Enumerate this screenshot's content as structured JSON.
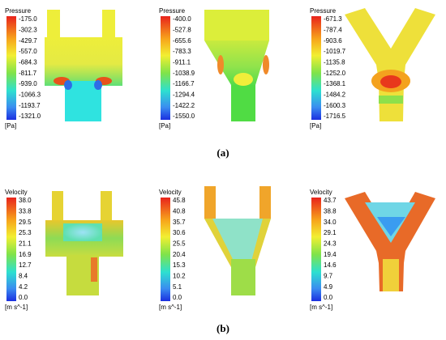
{
  "figure": {
    "panels": [
      {
        "quantity": "Pressure",
        "ticks": [
          "-175.0",
          "-302.3",
          "-429.7",
          "-557.0",
          "-684.3",
          "-811.7",
          "-939.0",
          "-1066.3",
          "-1193.7",
          "-1321.0"
        ],
        "unit": "[Pa]"
      },
      {
        "quantity": "Pressure",
        "ticks": [
          "-400.0",
          "-527.8",
          "-655.6",
          "-783.3",
          "-911.1",
          "-1038.9",
          "-1166.7",
          "-1294.4",
          "-1422.2",
          "-1550.0"
        ],
        "unit": "[Pa]"
      },
      {
        "quantity": "Pressure",
        "ticks": [
          "-671.3",
          "-787.4",
          "-903.6",
          "-1019.7",
          "-1135.8",
          "-1252.0",
          "-1368.1",
          "-1484.2",
          "-1600.3",
          "-1716.5"
        ],
        "unit": "[Pa]"
      },
      {
        "quantity": "Velocity",
        "ticks": [
          "38.0",
          "33.8",
          "29.5",
          "25.3",
          "21.1",
          "16.9",
          "12.7",
          "8.4",
          "4.2",
          "0.0"
        ],
        "unit": "[m s^-1]"
      },
      {
        "quantity": "Velocity",
        "ticks": [
          "45.8",
          "40.8",
          "35.7",
          "30.6",
          "25.5",
          "20.4",
          "15.3",
          "10.2",
          "5.1",
          "0.0"
        ],
        "unit": "[m s^-1]"
      },
      {
        "quantity": "Velocity",
        "ticks": [
          "43.7",
          "38.8",
          "34.0",
          "29.1",
          "24.3",
          "19.4",
          "14.6",
          "9.7",
          "4.9",
          "0.0"
        ],
        "unit": "[m s^-1]"
      }
    ],
    "captions": [
      "(a)",
      "(b)"
    ]
  }
}
